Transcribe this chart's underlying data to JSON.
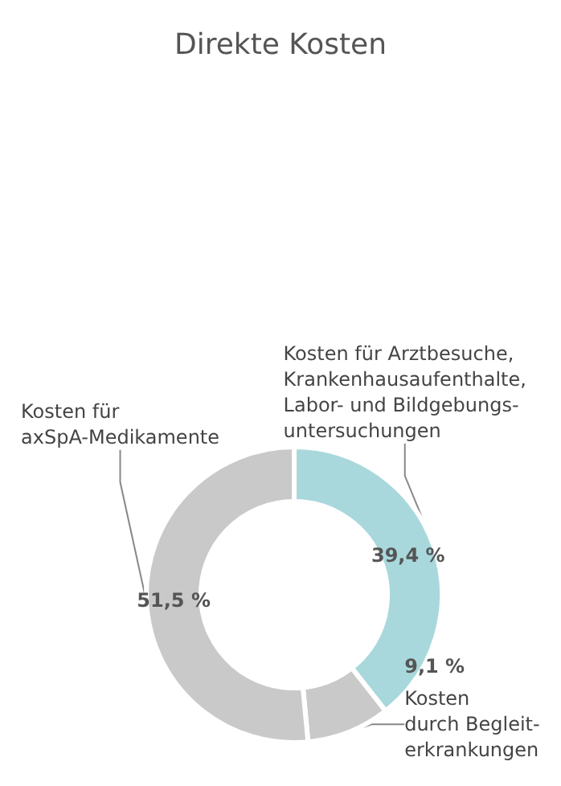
{
  "chart_data": {
    "type": "donut",
    "title": "Direkte Kosten",
    "categories": [
      "Kosten für Arztbesuche,\nKrankenhausaufenthalte,\nLabor- und Bildgebungs-\nuntersuchungen",
      "Kosten\ndurch Begleit-\nerkrankungen",
      "Kosten für\naxSpA-Medikamente"
    ],
    "values": [
      39.4,
      9.1,
      51.5
    ],
    "value_labels": [
      "39,4 %",
      "9,1 %",
      "51,5 %"
    ],
    "colors": [
      "#a9d8dc",
      "#c9c9c9",
      "#c9c9c9"
    ],
    "legend": false
  }
}
